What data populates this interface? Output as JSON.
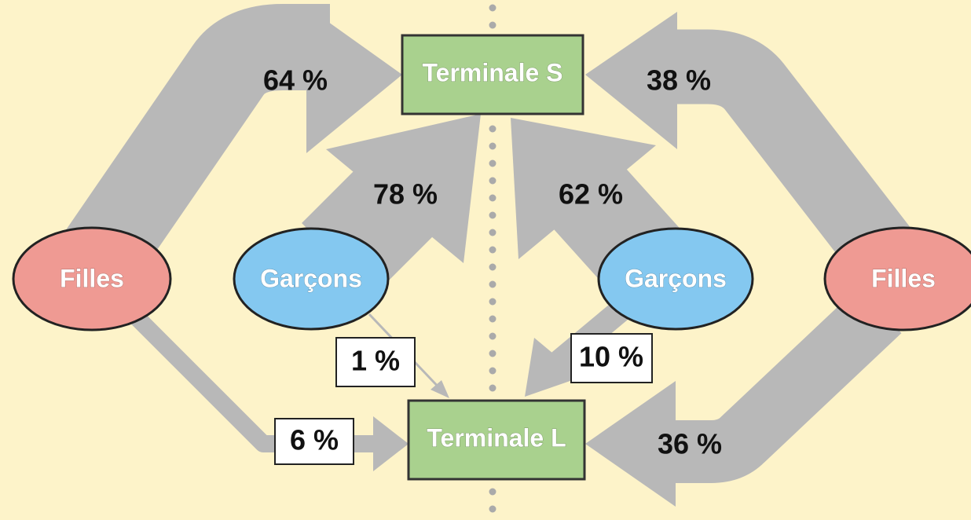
{
  "nodes": [
    {
      "label": "Terminale S"
    },
    {
      "label": "Terminale L"
    },
    {
      "label": "Filles"
    },
    {
      "label": "Garçons"
    },
    {
      "label": "Garçons"
    },
    {
      "label": "Filles"
    }
  ],
  "flows": [
    {
      "label": "64 %"
    },
    {
      "label": "78 %"
    },
    {
      "label": "38 %"
    },
    {
      "label": "62 %"
    },
    {
      "label": "6 %"
    },
    {
      "label": "1 %"
    },
    {
      "label": "10 %"
    },
    {
      "label": "36 %"
    }
  ]
}
